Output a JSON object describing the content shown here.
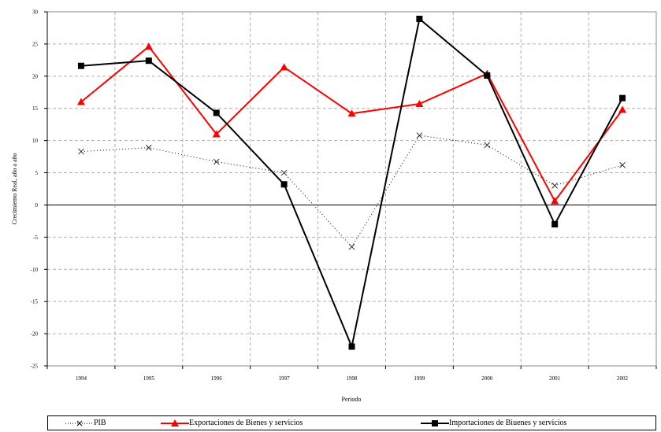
{
  "chart_data": {
    "type": "line",
    "title": "",
    "xlabel": "Periodo",
    "ylabel": "Crecimiento Real, año a año",
    "categories": [
      "1994",
      "1995",
      "1996",
      "1997",
      "1998",
      "1999",
      "2000",
      "2001",
      "2002"
    ],
    "ytick_labels": [
      "-25",
      "-20",
      "-15",
      "-10",
      "-5",
      "0",
      "5",
      "10",
      "15",
      "20",
      "25",
      "30"
    ],
    "ylim": [
      -25,
      30
    ],
    "grid": "dashed",
    "legend_position": "bottom",
    "series": [
      {
        "name": "PIB",
        "color": "#000000",
        "style": "dotted",
        "marker": "x",
        "values": [
          8.3,
          8.9,
          6.7,
          5.0,
          -6.5,
          10.8,
          9.3,
          3.0,
          6.2
        ]
      },
      {
        "name": "Exportaciones de Bienes y servicios",
        "color": "#ff0000",
        "style": "solid",
        "marker": "triangle",
        "values": [
          16.0,
          24.6,
          11.0,
          21.4,
          14.2,
          15.7,
          20.4,
          0.6,
          14.8
        ]
      },
      {
        "name": "Importaciones de Biuenes y servicios",
        "color": "#000000",
        "style": "solid",
        "marker": "square",
        "values": [
          21.6,
          22.4,
          14.3,
          3.2,
          -22.0,
          28.9,
          20.1,
          -3.0,
          16.6
        ]
      }
    ]
  }
}
